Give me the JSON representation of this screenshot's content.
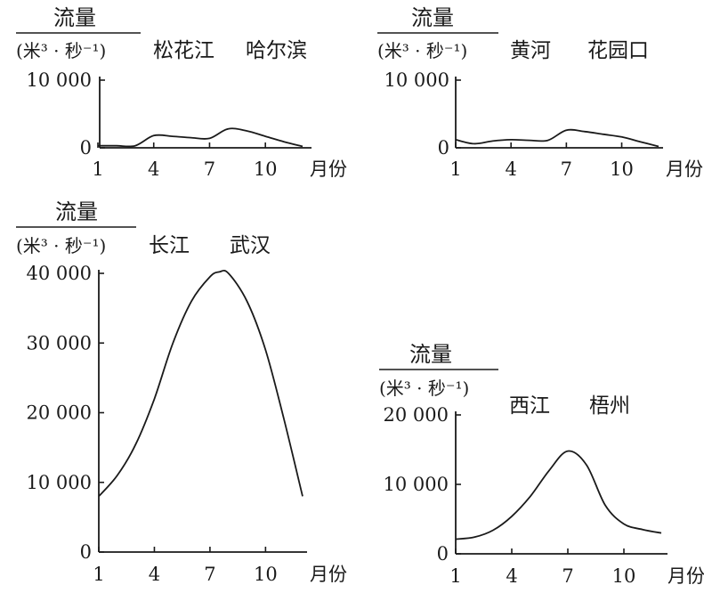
{
  "chart_data": [
    {
      "type": "line",
      "panel": "songhua",
      "title": "流量",
      "ylabel": "(米³ · 秒⁻¹)",
      "river": "松花江",
      "station": "哈尔滨",
      "xunit": "月份",
      "x_ticks": [
        1,
        4,
        7,
        10
      ],
      "y_ticks": [
        {
          "value": 0,
          "label": "0"
        },
        {
          "value": 10000,
          "label": "10 000"
        }
      ],
      "ylim": [
        0,
        10000
      ],
      "xlim": [
        1,
        12
      ],
      "x": [
        1,
        2,
        3,
        4,
        5,
        6,
        7,
        8,
        9,
        10,
        11,
        12
      ],
      "values": [
        300,
        300,
        300,
        1800,
        1700,
        1500,
        1400,
        2800,
        2500,
        1700,
        900,
        200
      ]
    },
    {
      "type": "line",
      "panel": "huanghe",
      "title": "流量",
      "ylabel": "(米³ · 秒⁻¹)",
      "river": "黄河",
      "station": "花园口",
      "xunit": "月份",
      "x_ticks": [
        1,
        4,
        7,
        10
      ],
      "y_ticks": [
        {
          "value": 0,
          "label": "0"
        },
        {
          "value": 10000,
          "label": "10 000"
        }
      ],
      "ylim": [
        0,
        10000
      ],
      "xlim": [
        1,
        12
      ],
      "x": [
        1,
        2,
        3,
        4,
        5,
        6,
        7,
        8,
        9,
        10,
        11,
        12
      ],
      "values": [
        1200,
        600,
        1000,
        1200,
        1100,
        1100,
        2600,
        2400,
        2000,
        1600,
        900,
        200
      ]
    },
    {
      "type": "line",
      "panel": "changjiang",
      "title": "流量",
      "ylabel": "(米³ · 秒⁻¹)",
      "river": "长江",
      "station": "武汉",
      "xunit": "月份",
      "x_ticks": [
        1,
        4,
        7,
        10
      ],
      "y_ticks": [
        {
          "value": 0,
          "label": "0"
        },
        {
          "value": 10000,
          "label": "10 000"
        },
        {
          "value": 20000,
          "label": "20 000"
        },
        {
          "value": 30000,
          "label": "30 000"
        },
        {
          "value": 40000,
          "label": "40 000"
        }
      ],
      "ylim": [
        0,
        40000
      ],
      "xlim": [
        1,
        12
      ],
      "x": [
        1,
        2,
        3,
        4,
        5,
        6,
        7,
        7.5,
        8,
        9,
        10,
        11,
        12
      ],
      "values": [
        8000,
        11000,
        15500,
        22000,
        30000,
        36000,
        39500,
        40200,
        40000,
        36000,
        29000,
        19000,
        8000
      ]
    },
    {
      "type": "line",
      "panel": "xijiang",
      "title": "流量",
      "ylabel": "(米³ · 秒⁻¹)",
      "river": "西江",
      "station": "梧州",
      "xunit": "月份",
      "x_ticks": [
        1,
        4,
        7,
        10
      ],
      "y_ticks": [
        {
          "value": 0,
          "label": "0"
        },
        {
          "value": 10000,
          "label": "10 000"
        },
        {
          "value": 20000,
          "label": "20 000"
        }
      ],
      "ylim": [
        0,
        20000
      ],
      "xlim": [
        1,
        12
      ],
      "x": [
        1,
        2,
        3,
        4,
        5,
        6,
        7,
        8,
        9,
        10,
        11,
        12
      ],
      "values": [
        2100,
        2400,
        3400,
        5400,
        8300,
        12000,
        14800,
        12800,
        7000,
        4300,
        3500,
        3000
      ]
    }
  ]
}
